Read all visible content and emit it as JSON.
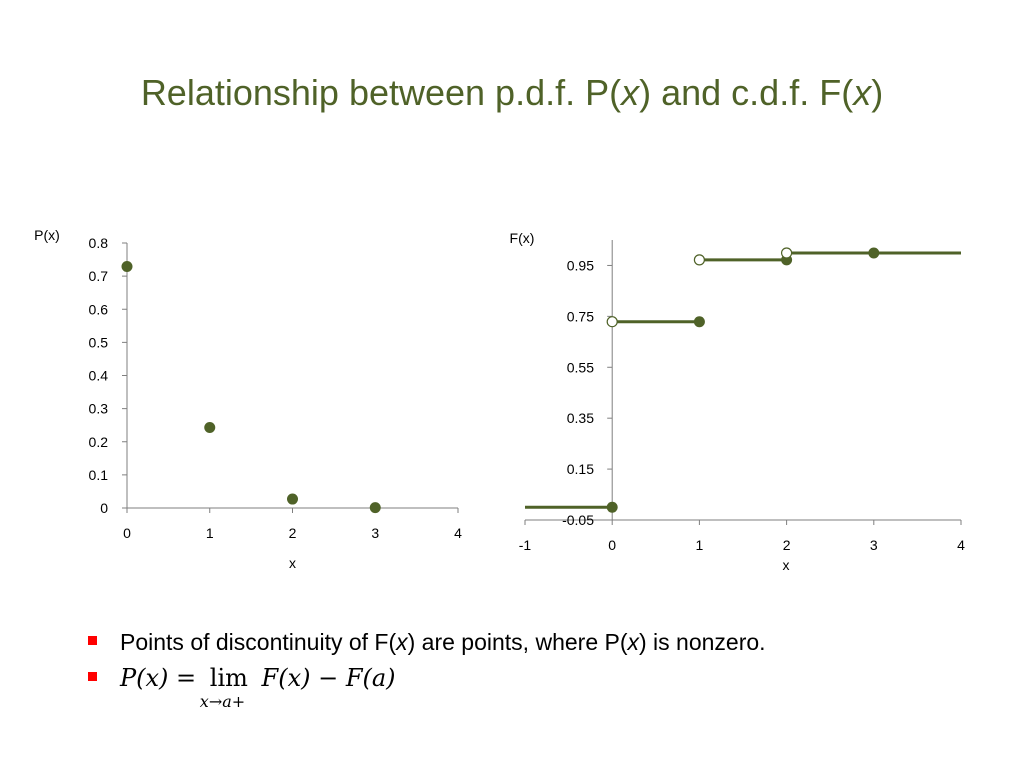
{
  "slide": {
    "title_parts": [
      "Relationship between p.d.f. P(",
      "x",
      ") and c.d.f. F(",
      "x",
      ")"
    ],
    "accent_color": "#4f6228",
    "bullet_color": "#ff0000",
    "bullets": [
      {
        "parts": [
          "Points of discontinuity of F(",
          "x",
          ") are points, where P(",
          "x",
          ") is nonzero."
        ]
      },
      {
        "math": {
          "lhs": "P(x) =",
          "lim": "lim",
          "lim_sub": "x→a+",
          "rhs": "F(x) − F(a)"
        }
      }
    ]
  },
  "chart_data": [
    {
      "type": "scatter",
      "ylabel": "P(x)",
      "xlabel": "x",
      "xlim": [
        0,
        4
      ],
      "ylim": [
        0,
        0.8
      ],
      "xticks": [
        0,
        1,
        2,
        3,
        4
      ],
      "yticks": [
        0,
        0.1,
        0.2,
        0.3,
        0.4,
        0.5,
        0.6,
        0.7,
        0.8
      ],
      "ytick_labels": [
        "0",
        "0.1",
        "0.2",
        "0.3",
        "0.4",
        "0.5",
        "0.6",
        "0.7",
        "0.8"
      ],
      "points": [
        {
          "x": 0,
          "y": 0.729
        },
        {
          "x": 1,
          "y": 0.243
        },
        {
          "x": 2,
          "y": 0.027
        },
        {
          "x": 3,
          "y": 0.001
        }
      ],
      "grid": false
    },
    {
      "type": "line",
      "subtype": "step",
      "ylabel": "F(x)",
      "xlabel": "x",
      "xlim": [
        -1,
        4
      ],
      "ylim": [
        -0.05,
        1.05
      ],
      "xticks": [
        -1,
        0,
        1,
        2,
        3,
        4
      ],
      "yticks": [
        -0.05,
        0.15,
        0.35,
        0.55,
        0.75,
        0.95
      ],
      "ytick_labels": [
        "-0.05",
        "0.15",
        "0.35",
        "0.55",
        "0.75",
        "0.95"
      ],
      "segments": [
        {
          "x": [
            -1,
            0
          ],
          "y": 0
        },
        {
          "x": [
            0,
            1
          ],
          "y": 0.729
        },
        {
          "x": [
            1,
            2
          ],
          "y": 0.972
        },
        {
          "x": [
            2,
            4
          ],
          "y": 0.999
        }
      ],
      "closed_points": [
        {
          "x": 0,
          "y": 0
        },
        {
          "x": 1,
          "y": 0.729
        },
        {
          "x": 2,
          "y": 0.972
        },
        {
          "x": 3,
          "y": 0.999
        }
      ],
      "open_points": [
        {
          "x": 0,
          "y": 0.729
        },
        {
          "x": 1,
          "y": 0.972
        },
        {
          "x": 2,
          "y": 0.999
        }
      ],
      "grid": false
    }
  ]
}
